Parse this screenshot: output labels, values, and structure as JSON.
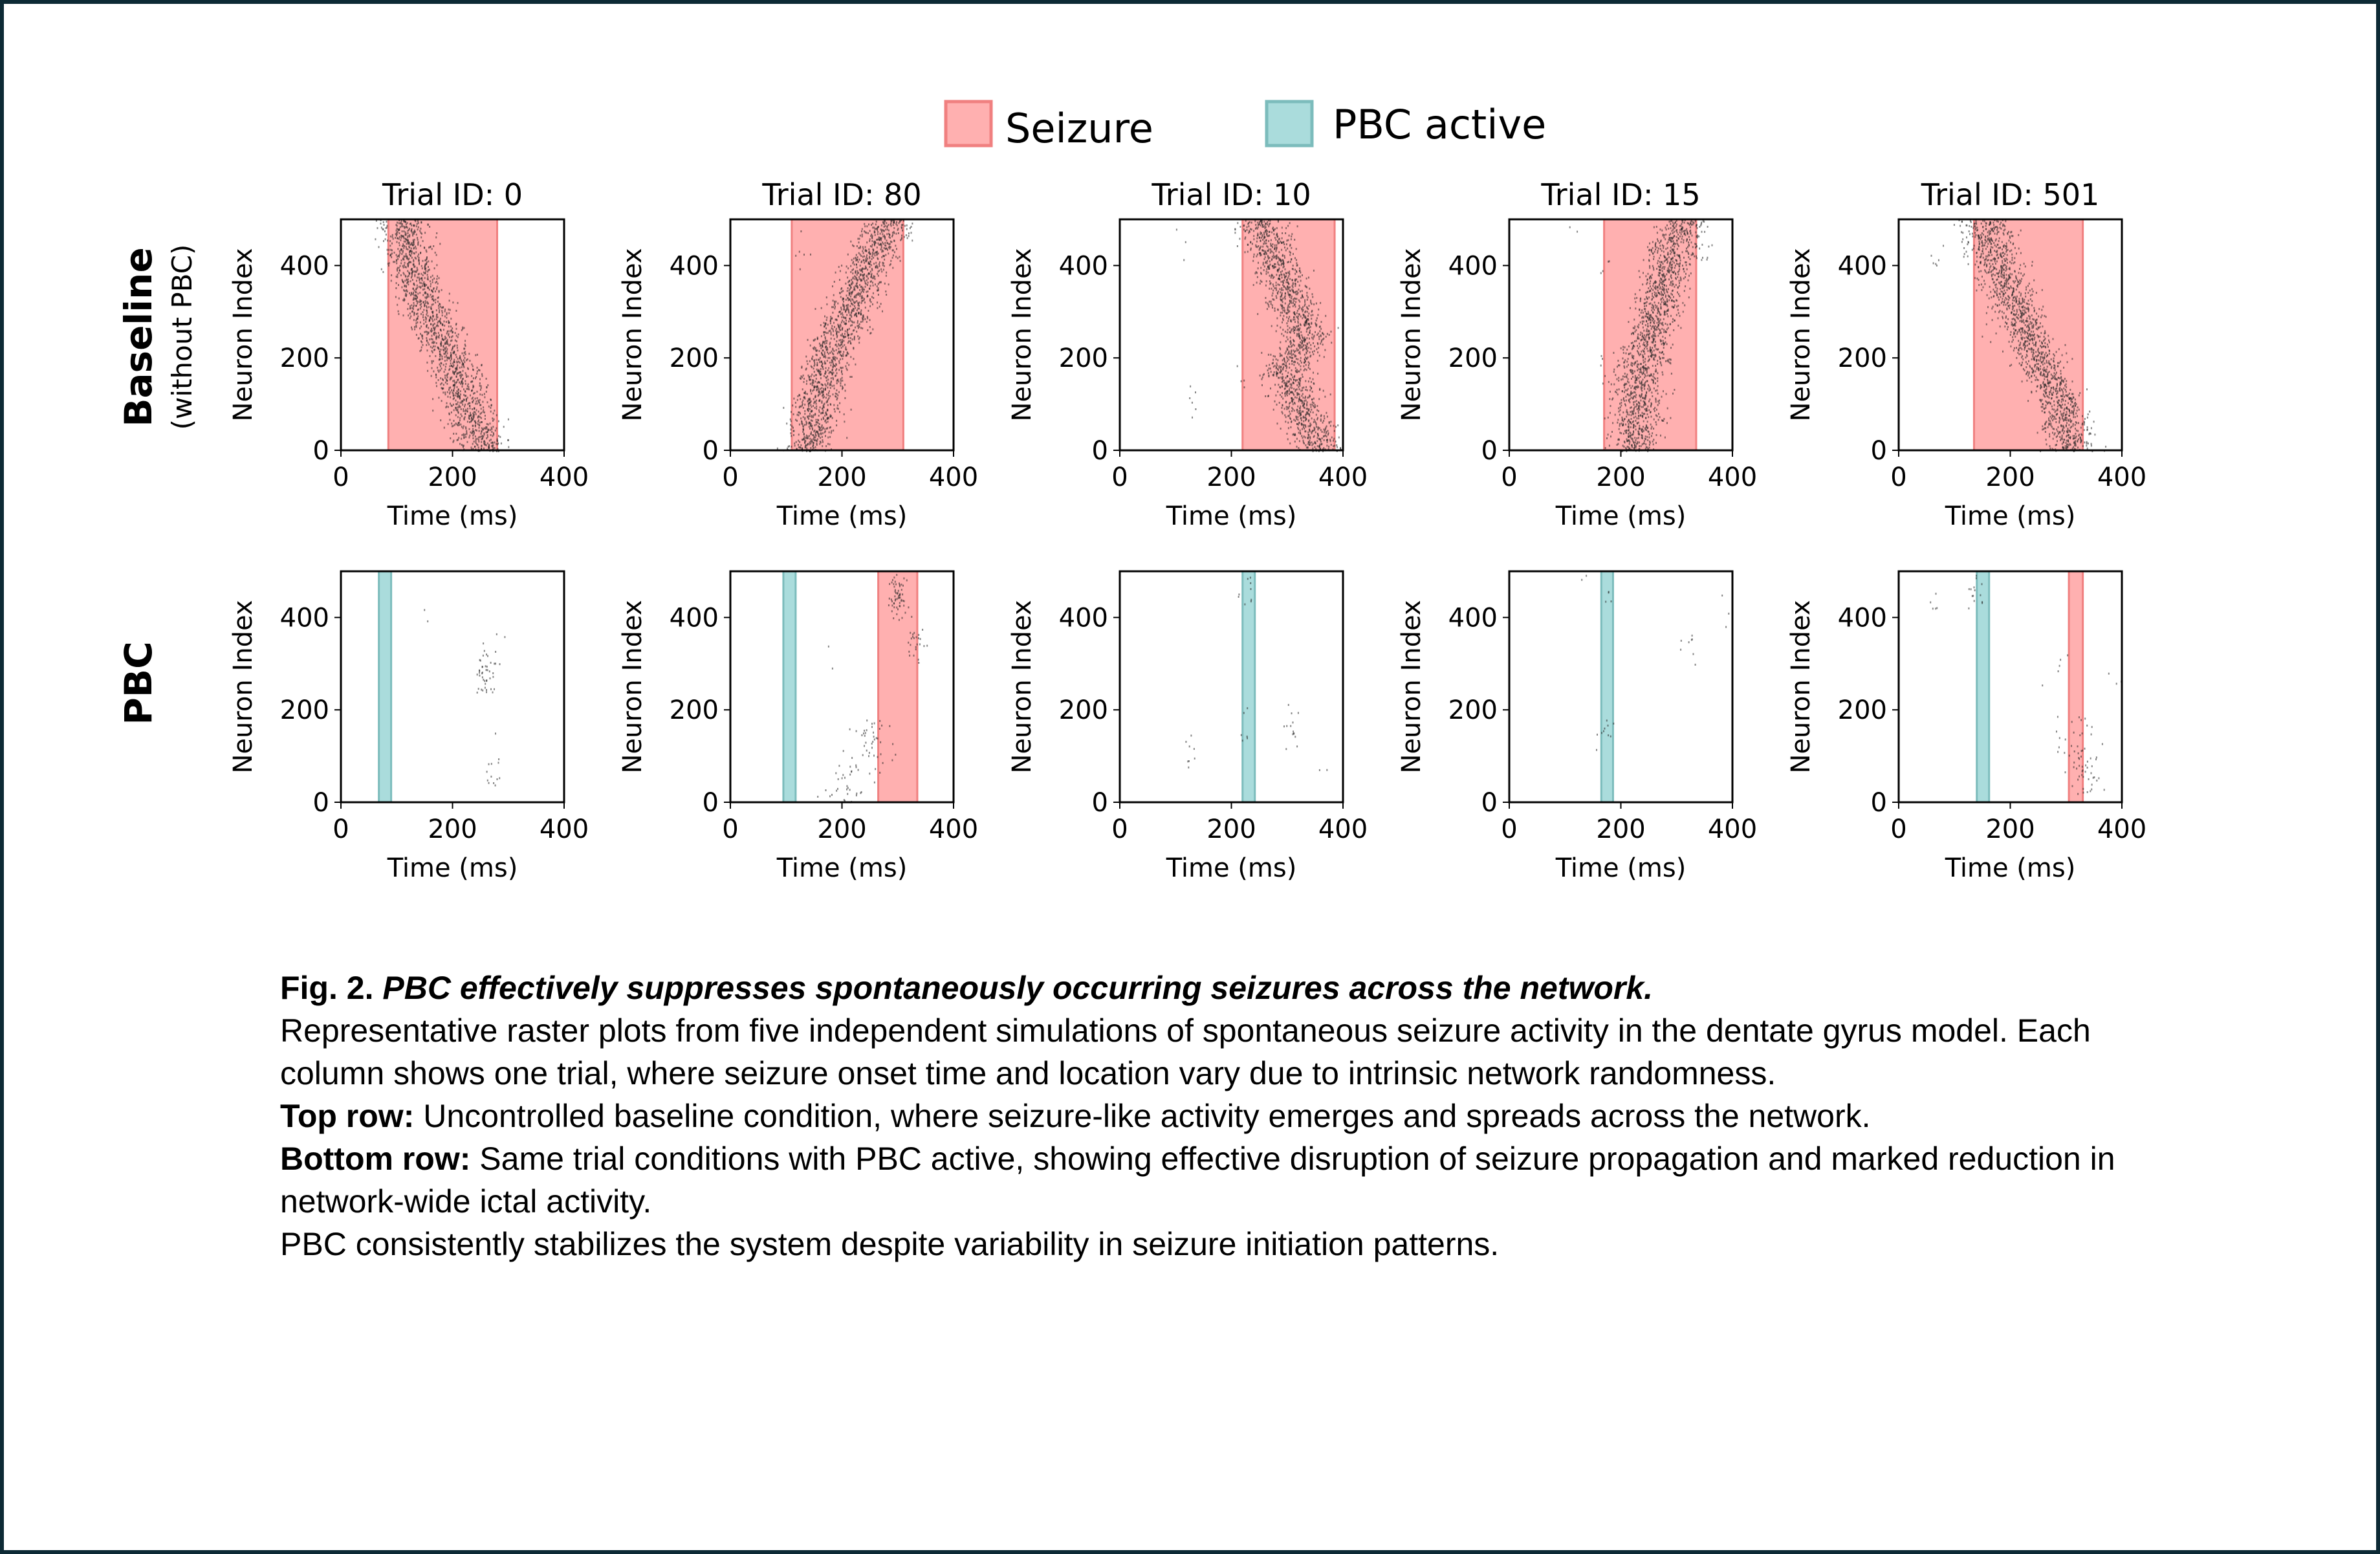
{
  "legend": [
    {
      "label": "Seizure",
      "color": "#ffb0b0",
      "edge": "#f08080"
    },
    {
      "label": "PBC active",
      "color": "#aadcdc",
      "edge": "#7cbcbc"
    }
  ],
  "row_labels": [
    {
      "title": "Baseline",
      "subtitle": "(without PBC)"
    },
    {
      "title": "PBC",
      "subtitle": ""
    }
  ],
  "chart_data": {
    "type": "scatter",
    "subtype": "raster",
    "xlabel": "Time (ms)",
    "ylabel": "Neuron Index",
    "xlim": [
      0,
      400
    ],
    "ylim": [
      0,
      500
    ],
    "xticks": [
      "0",
      "200",
      "400"
    ],
    "yticks": [
      "0",
      "200",
      "400"
    ],
    "grid": false,
    "legend_position": "top-center",
    "columns": [
      {
        "title": "Trial ID: 0",
        "baseline": {
          "seizure": [
            85,
            280
          ],
          "wave_path": [
            [
              110,
              500
            ],
            [
              130,
              380
            ],
            [
              175,
              250
            ],
            [
              210,
              150
            ],
            [
              255,
              0
            ]
          ],
          "sparse": [
            [
              270,
              20,
              6
            ]
          ]
        },
        "pbc": {
          "pbc": [
            68,
            90
          ],
          "seizure": null,
          "wave_path": null,
          "sparse": [
            [
              258,
              290,
              40
            ],
            [
              280,
              340,
              6
            ],
            [
              272,
              60,
              12
            ],
            [
              150,
              410,
              2
            ],
            [
              270,
              200,
              2
            ]
          ]
        }
      },
      {
        "title": "Trial ID: 80",
        "baseline": {
          "seizure": [
            110,
            310
          ],
          "wave_path": [
            [
              135,
              0
            ],
            [
              175,
              200
            ],
            [
              215,
              300
            ],
            [
              250,
              420
            ],
            [
              285,
              500
            ]
          ],
          "sparse": [
            [
              310,
              470,
              8
            ],
            [
              130,
              440,
              6
            ],
            [
              160,
              300,
              3
            ]
          ]
        },
        "pbc": {
          "pbc": [
            95,
            117
          ],
          "seizure": [
            265,
            335
          ],
          "wave_path": [
            [
              200,
              0
            ],
            [
              235,
              100
            ],
            [
              260,
              180
            ]
          ],
          "sparse": [
            [
              300,
              450,
              60
            ],
            [
              330,
              350,
              25
            ],
            [
              180,
              330,
              2
            ]
          ]
        }
      },
      {
        "title": "Trial ID: 10",
        "baseline": {
          "seizure": [
            220,
            385
          ],
          "wave_path": [
            [
              250,
              500
            ],
            [
              290,
              380
            ],
            [
              330,
              250
            ],
            [
              300,
              170
            ],
            [
              330,
              80
            ],
            [
              360,
              0
            ]
          ],
          "sparse": [
            [
              130,
              110,
              6
            ],
            [
              110,
              450,
              3
            ],
            [
              215,
              150,
              4
            ]
          ]
        },
        "pbc": {
          "pbc": [
            220,
            242
          ],
          "seizure": null,
          "wave_path": null,
          "sparse": [
            [
              310,
              160,
              14
            ],
            [
              130,
              110,
              8
            ],
            [
              225,
              470,
              10
            ],
            [
              225,
              160,
              6
            ],
            [
              370,
              90,
              2
            ]
          ]
        }
      },
      {
        "title": "Trial ID: 15",
        "baseline": {
          "seizure": [
            170,
            335
          ],
          "wave_path": [
            [
              225,
              0
            ],
            [
              230,
              150
            ],
            [
              260,
              280
            ],
            [
              290,
              420
            ],
            [
              315,
              500
            ]
          ],
          "sparse": [
            [
              345,
              430,
              6
            ],
            [
              170,
              370,
              4
            ],
            [
              165,
              180,
              6
            ],
            [
              115,
              480,
              2
            ]
          ]
        },
        "pbc": {
          "pbc": [
            165,
            186
          ],
          "seizure": null,
          "wave_path": null,
          "sparse": [
            [
              320,
              330,
              8
            ],
            [
              170,
              150,
              10
            ],
            [
              175,
              420,
              4
            ],
            [
              380,
              420,
              3
            ],
            [
              130,
              490,
              2
            ]
          ]
        }
      },
      {
        "title": "Trial ID: 501",
        "baseline": {
          "seizure": [
            135,
            330
          ],
          "wave_path": [
            [
              155,
              500
            ],
            [
              175,
              400
            ],
            [
              215,
              300
            ],
            [
              250,
              200
            ],
            [
              290,
              100
            ],
            [
              310,
              0
            ]
          ],
          "sparse": [
            [
              70,
              440,
              6
            ],
            [
              115,
              470,
              4
            ],
            [
              160,
              250,
              6
            ]
          ]
        },
        "pbc": {
          "pbc": [
            140,
            162
          ],
          "seizure": [
            305,
            330
          ],
          "wave_path": [
            [
              320,
              190
            ],
            [
              320,
              100
            ],
            [
              340,
              20
            ]
          ],
          "sparse": [
            [
              135,
              460,
              14
            ],
            [
              60,
              430,
              5
            ],
            [
              290,
              320,
              4
            ],
            [
              395,
              260,
              3
            ],
            [
              250,
              210,
              1
            ]
          ]
        }
      }
    ]
  },
  "caption": {
    "fig_label": "Fig. 2.",
    "fig_title": "PBC effectively suppresses spontaneously occurring seizures across the network.",
    "intro": "Representative raster plots from five independent simulations of spontaneous seizure activity in the dentate gyrus model. Each column shows one trial, where seizure onset time and location vary due to intrinsic network randomness.",
    "top_label": "Top row:",
    "top_text": "Uncontrolled baseline condition, where seizure-like activity emerges and spreads across the network.",
    "bottom_label": "Bottom row:",
    "bottom_text": "Same trial conditions with PBC active, showing effective disruption of seizure propagation and marked reduction in network-wide ictal activity.",
    "conclusion": "PBC consistently stabilizes the system despite variability in seizure initiation patterns."
  }
}
